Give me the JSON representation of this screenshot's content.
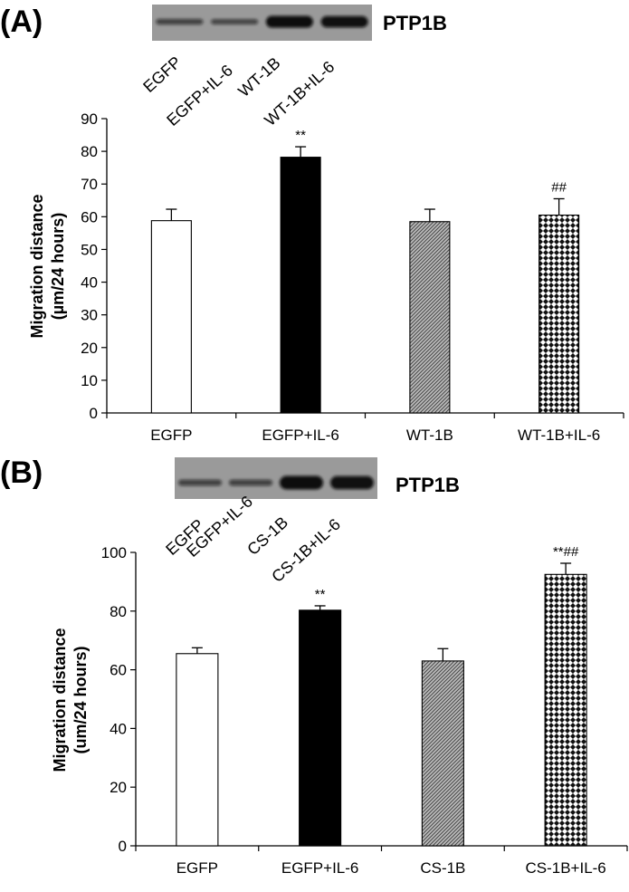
{
  "chart_data": [
    {
      "type": "bar",
      "panel_label": "(A)",
      "blot": {
        "protein": "PTP1B",
        "lanes": [
          "EGFP",
          "EGFP+IL-6",
          "WT-1B",
          "WT-1B+IL-6"
        ],
        "band_intensity": [
          0.25,
          0.2,
          1.0,
          0.95
        ]
      },
      "categories": [
        "EGFP",
        "EGFP+IL-6",
        "WT-1B",
        "WT-1B+IL-6"
      ],
      "values": [
        58.8,
        78.2,
        58.5,
        60.5
      ],
      "errors": [
        3.5,
        3.2,
        3.8,
        5.0
      ],
      "annotations": [
        "",
        "**",
        "",
        "##"
      ],
      "fills": [
        "white",
        "black",
        "diagonal-hatch",
        "checker"
      ],
      "ylabel_line1": "Migration distance",
      "ylabel_line2": "(µm/24 hours)",
      "yticks": [
        "0",
        "10",
        "20",
        "30",
        "40",
        "50",
        "60",
        "70",
        "80",
        "90"
      ],
      "ylim": [
        0,
        90
      ],
      "grid": false
    },
    {
      "type": "bar",
      "panel_label": "(B)",
      "blot": {
        "protein": "PTP1B",
        "lanes": [
          "EGFP",
          "EGFP+IL-6",
          "CS-1B",
          "CS-1B+IL-6"
        ],
        "band_intensity": [
          0.25,
          0.25,
          1.0,
          0.95
        ]
      },
      "categories": [
        "EGFP",
        "EGFP+IL-6",
        "CS-1B",
        "CS-1B+IL-6"
      ],
      "values": [
        65.5,
        80.3,
        63.0,
        92.5
      ],
      "errors": [
        2.0,
        1.5,
        4.2,
        3.8
      ],
      "annotations": [
        "",
        "**",
        "",
        "**##"
      ],
      "fills": [
        "white",
        "black",
        "diagonal-hatch",
        "checker"
      ],
      "ylabel_line1": "Migration distance",
      "ylabel_line2": "(um/24 hours)",
      "yticks": [
        "0",
        "20",
        "40",
        "60",
        "80",
        "100"
      ],
      "ylim": [
        0,
        100
      ],
      "grid": false
    }
  ]
}
